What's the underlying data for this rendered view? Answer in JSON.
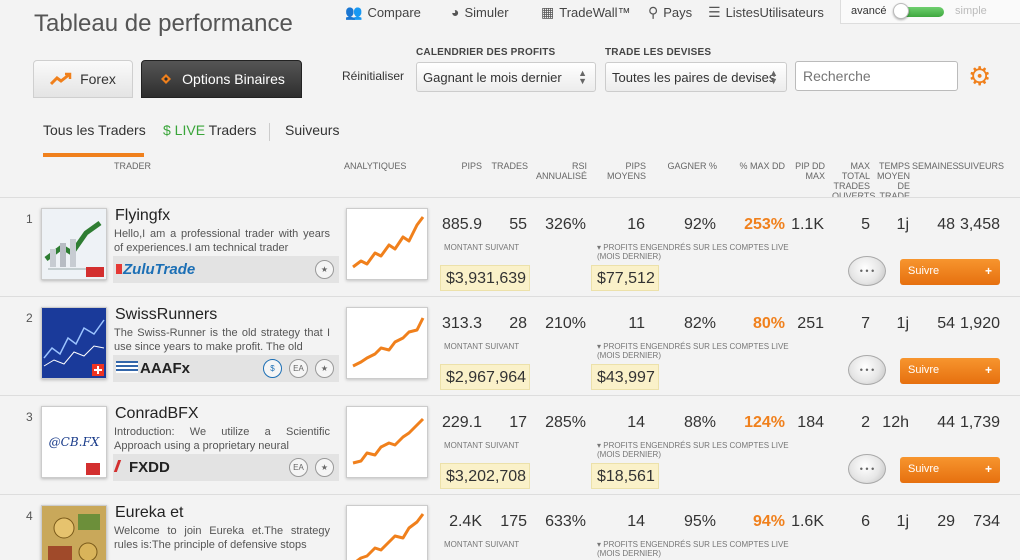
{
  "header": {
    "title": "Tableau de performance",
    "nav": [
      {
        "label": "Compare",
        "icon": "people-icon"
      },
      {
        "label": "Simuler",
        "icon": "speedometer-icon"
      },
      {
        "label": "TradeWall™",
        "icon": "network-icon"
      },
      {
        "label": "Pays",
        "icon": "map-pin-icon"
      },
      {
        "label": "ListesUtilisateurs",
        "icon": "list-icon"
      }
    ],
    "mode_toggle": {
      "left": "avancé",
      "right": "simple"
    }
  },
  "tabs": {
    "forex": "Forex",
    "options": "Options Binaires"
  },
  "filters": {
    "reset": "Réinitialiser",
    "calendar_label": "CALENDRIER DES PROFITS",
    "calendar_value": "Gagnant le mois dernier",
    "pairs_label": "TRADE LES DEVISES",
    "pairs_value": "Toutes les paires de devises",
    "search_placeholder": "Recherche"
  },
  "subtabs": {
    "all": "Tous les Traders",
    "live_prefix": "$ LIVE",
    "live": "Traders",
    "followers": "Suiveurs"
  },
  "columns": {
    "trader": "TRADER",
    "analytics": "ANALYTIQUES",
    "pips": "PIPS",
    "trades": "TRADES",
    "rsi": "RSI ANNUALISÉ",
    "avg_pips": "PIPS MOYENS",
    "win": "GAGNER %",
    "maxdd": "% MAX DD",
    "pipdd": "PIP DD MAX",
    "maxopen": "MAX TOTAL TRADES OUVERTS",
    "avgtime": "TEMPS MOYEN DE TRADE",
    "weeks": "SEMAINES",
    "followers": "SUIVEURS"
  },
  "labels": {
    "next_amount": "MONTANT SUIVANT",
    "live_profits": "PROFITS ENGENDRÉS SUR LES COMPTES LIVE (MOIS DERNIER)",
    "follow": "Suivre",
    "plus": "+",
    "badge_s": "$",
    "badge_ea": "EA"
  },
  "traders": [
    {
      "rank": "1",
      "name": "Flyingfx",
      "desc": "Hello,I am a professional trader with years of experiences.I am technical trader",
      "broker": "ZuluTrade",
      "pips": "885.9",
      "trades": "55",
      "rsi": "326%",
      "avg_pips": "16",
      "win": "92%",
      "maxdd": "253%",
      "pipdd": "1.1K",
      "maxopen": "5",
      "avgtime": "1j",
      "weeks": "48",
      "followers": "3,458",
      "amount": "$3,931,639",
      "live_profit": "$77,512"
    },
    {
      "rank": "2",
      "name": "SwissRunners",
      "desc": "The Swiss-Runner is the old strategy that I use since years to make profit. The old",
      "broker": "AAAFx",
      "pips": "313.3",
      "trades": "28",
      "rsi": "210%",
      "avg_pips": "11",
      "win": "82%",
      "maxdd": "80%",
      "pipdd": "251",
      "maxopen": "7",
      "avgtime": "1j",
      "weeks": "54",
      "followers": "1,920",
      "amount": "$2,967,964",
      "live_profit": "$43,997"
    },
    {
      "rank": "3",
      "name": "ConradBFX",
      "desc": "Introduction: We utilize a Scientific Approach using a proprietary neural",
      "broker": "FXDD",
      "thumb_text": "@CB.FX",
      "pips": "229.1",
      "trades": "17",
      "rsi": "285%",
      "avg_pips": "14",
      "win": "88%",
      "maxdd": "124%",
      "pipdd": "184",
      "maxopen": "2",
      "avgtime": "12h",
      "weeks": "44",
      "followers": "1,739",
      "amount": "$3,202,708",
      "live_profit": "$18,561"
    },
    {
      "rank": "4",
      "name": "Eureka et",
      "desc": "Welcome to join Eureka et.The strategy rules is:The principle of defensive stops",
      "pips": "2.4K",
      "trades": "175",
      "rsi": "633%",
      "avg_pips": "14",
      "win": "95%",
      "maxdd": "94%",
      "pipdd": "1.6K",
      "maxopen": "6",
      "avgtime": "1j",
      "weeks": "29",
      "followers": "734"
    }
  ],
  "colors": {
    "accent": "#f0801c",
    "live": "#3aa53a",
    "money_bg": "#faf1c9"
  }
}
